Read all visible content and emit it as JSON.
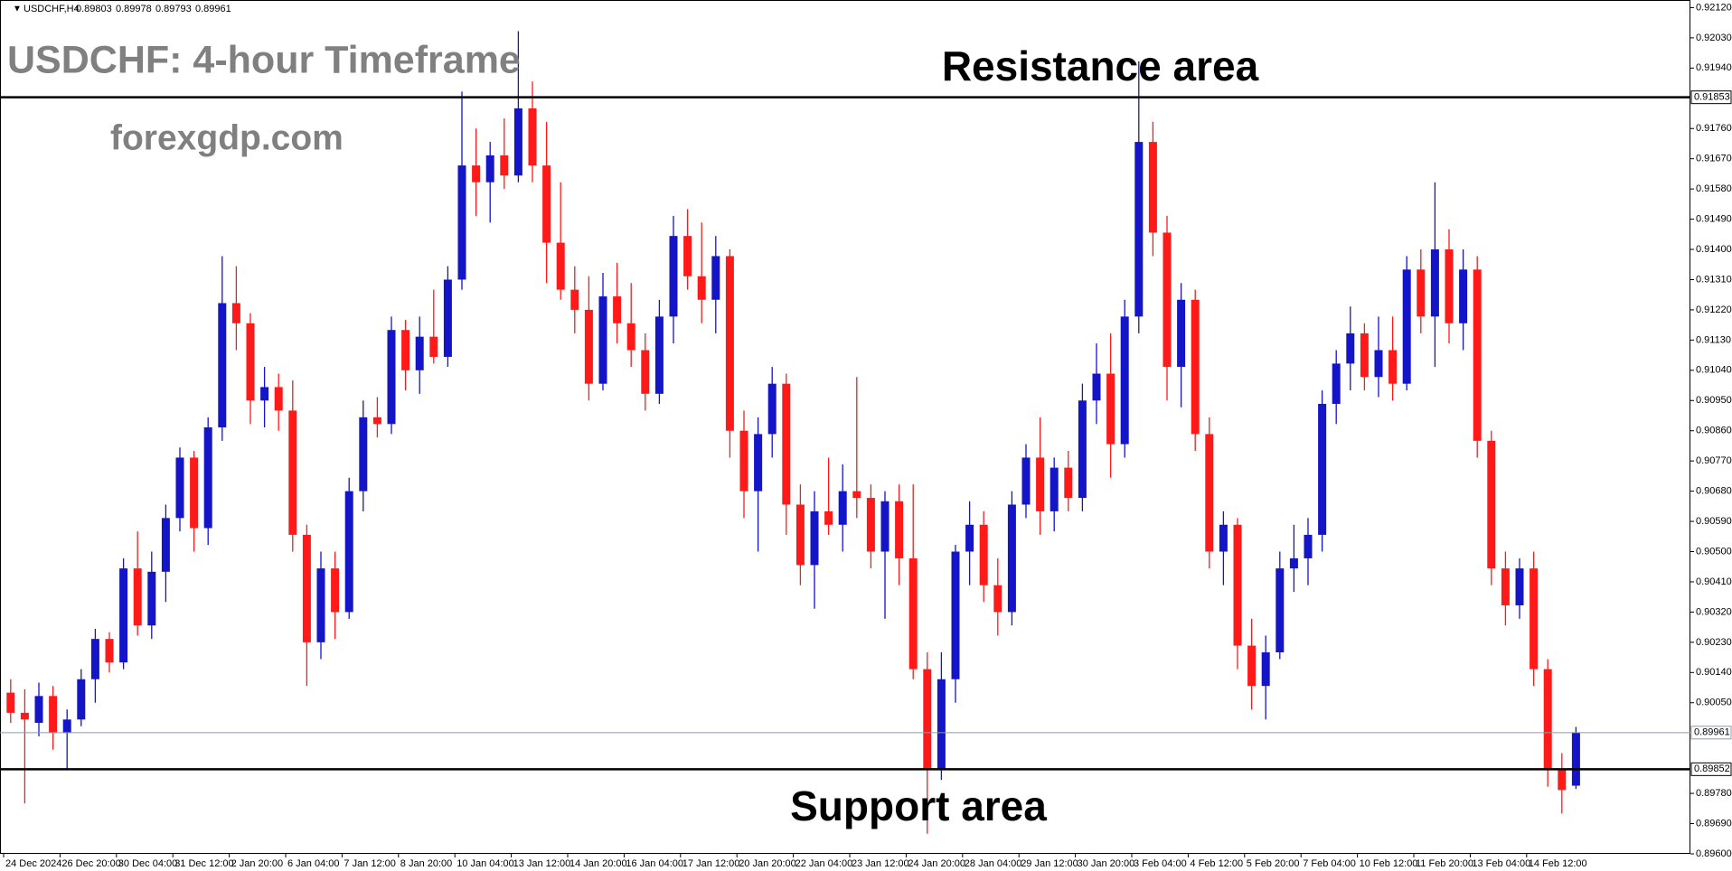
{
  "chart_data": {
    "type": "candlestick",
    "symbol": "USDCHF,H4",
    "title": "USDCHF: 4-hour Timeframe",
    "subtitle": "forexgdp.com",
    "annotations": [
      "Resistance area",
      "Support area"
    ],
    "levels": [
      0.91853,
      0.89852
    ],
    "up_color": "#1515c8",
    "down_color": "#ff1a1a",
    "ylim": [
      0.896,
      0.9214
    ],
    "yticks": [
      {
        "value": 0.9212,
        "label": "0.92120"
      },
      {
        "value": 0.9203,
        "label": "0.92030"
      },
      {
        "value": 0.9194,
        "label": "0.91940"
      },
      {
        "value": 0.9176,
        "label": "0.91760"
      },
      {
        "value": 0.9167,
        "label": "0.91670"
      },
      {
        "value": 0.9158,
        "label": "0.91580"
      },
      {
        "value": 0.9149,
        "label": "0.91490"
      },
      {
        "value": 0.914,
        "label": "0.91400"
      },
      {
        "value": 0.9131,
        "label": "0.91310"
      },
      {
        "value": 0.9122,
        "label": "0.91220"
      },
      {
        "value": 0.9113,
        "label": "0.91130"
      },
      {
        "value": 0.9104,
        "label": "0.91040"
      },
      {
        "value": 0.9095,
        "label": "0.90950"
      },
      {
        "value": 0.9086,
        "label": "0.90860"
      },
      {
        "value": 0.9077,
        "label": "0.90770"
      },
      {
        "value": 0.9068,
        "label": "0.90680"
      },
      {
        "value": 0.9059,
        "label": "0.90590"
      },
      {
        "value": 0.905,
        "label": "0.90500"
      },
      {
        "value": 0.9041,
        "label": "0.90410"
      },
      {
        "value": 0.9032,
        "label": "0.90320"
      },
      {
        "value": 0.9023,
        "label": "0.90230"
      },
      {
        "value": 0.9014,
        "label": "0.90140"
      },
      {
        "value": 0.9005,
        "label": "0.90050"
      },
      {
        "value": 0.8978,
        "label": "0.89780"
      },
      {
        "value": 0.8969,
        "label": "0.89690"
      },
      {
        "value": 0.896,
        "label": "0.89600"
      }
    ],
    "x": [
      "24 Dec 2024",
      null,
      null,
      null,
      "26 Dec 20:00",
      null,
      null,
      null,
      "30 Dec 04:00",
      null,
      null,
      null,
      "31 Dec 12:00",
      null,
      null,
      null,
      "2 Jan 20:00",
      null,
      null,
      null,
      "6 Jan 04:00",
      null,
      null,
      null,
      "7 Jan 12:00",
      null,
      null,
      null,
      "8 Jan 20:00",
      null,
      null,
      null,
      "10 Jan 04:00",
      null,
      null,
      null,
      "13 Jan 12:00",
      null,
      null,
      null,
      "14 Jan 20:00",
      null,
      null,
      null,
      "16 Jan 04:00",
      null,
      null,
      null,
      "17 Jan 12:00",
      null,
      null,
      null,
      "20 Jan 20:00",
      null,
      null,
      null,
      "22 Jan 04:00",
      null,
      null,
      null,
      "23 Jan 12:00",
      null,
      null,
      null,
      "24 Jan 20:00",
      null,
      null,
      null,
      "28 Jan 04:00",
      null,
      null,
      null,
      "29 Jan 12:00",
      null,
      null,
      null,
      "30 Jan 20:00",
      null,
      null,
      null,
      "3 Feb 04:00",
      null,
      null,
      null,
      "4 Feb 12:00",
      null,
      null,
      null,
      "5 Feb 20:00",
      null,
      null,
      null,
      "7 Feb 04:00",
      null,
      null,
      null,
      "10 Feb 12:00",
      null,
      null,
      null,
      "11 Feb 20:00",
      null,
      null,
      null,
      "13 Feb 04:00",
      null,
      null,
      null,
      "14 Feb 12:00",
      null,
      null,
      null
    ],
    "ohlc": [
      [
        0.9008,
        0.9012,
        0.8999,
        0.9002
      ],
      [
        0.9002,
        0.9009,
        0.8975,
        0.9
      ],
      [
        0.8999,
        0.9011,
        0.8995,
        0.9007
      ],
      [
        0.9007,
        0.901,
        0.8991,
        0.8996
      ],
      [
        0.8996,
        0.9003,
        0.8985,
        0.9
      ],
      [
        0.9,
        0.9015,
        0.8998,
        0.9012
      ],
      [
        0.9012,
        0.9027,
        0.9005,
        0.9024
      ],
      [
        0.9024,
        0.9026,
        0.9014,
        0.9017
      ],
      [
        0.9017,
        0.9048,
        0.9015,
        0.9045
      ],
      [
        0.9045,
        0.9056,
        0.9025,
        0.9028
      ],
      [
        0.9028,
        0.905,
        0.9024,
        0.9044
      ],
      [
        0.9044,
        0.9064,
        0.9035,
        0.906
      ],
      [
        0.906,
        0.9081,
        0.9056,
        0.9078
      ],
      [
        0.9078,
        0.908,
        0.905,
        0.9057
      ],
      [
        0.9057,
        0.909,
        0.9052,
        0.9087
      ],
      [
        0.9087,
        0.9138,
        0.9083,
        0.9124
      ],
      [
        0.9124,
        0.9135,
        0.911,
        0.9118
      ],
      [
        0.9118,
        0.9121,
        0.9088,
        0.9095
      ],
      [
        0.9095,
        0.9105,
        0.9087,
        0.9099
      ],
      [
        0.9099,
        0.9103,
        0.9086,
        0.9092
      ],
      [
        0.9092,
        0.9101,
        0.905,
        0.9055
      ],
      [
        0.9055,
        0.9058,
        0.901,
        0.9023
      ],
      [
        0.9023,
        0.905,
        0.9018,
        0.9045
      ],
      [
        0.9045,
        0.905,
        0.9024,
        0.9032
      ],
      [
        0.9032,
        0.9072,
        0.903,
        0.9068
      ],
      [
        0.9068,
        0.9095,
        0.9062,
        0.909
      ],
      [
        0.909,
        0.9096,
        0.9084,
        0.9088
      ],
      [
        0.9088,
        0.912,
        0.9085,
        0.9116
      ],
      [
        0.9116,
        0.9119,
        0.9098,
        0.9104
      ],
      [
        0.9104,
        0.912,
        0.9097,
        0.9114
      ],
      [
        0.9114,
        0.9128,
        0.9106,
        0.9108
      ],
      [
        0.9108,
        0.9135,
        0.9105,
        0.9131
      ],
      [
        0.9131,
        0.9187,
        0.9128,
        0.9165
      ],
      [
        0.9165,
        0.9176,
        0.915,
        0.916
      ],
      [
        0.916,
        0.9172,
        0.9148,
        0.9168
      ],
      [
        0.9168,
        0.9179,
        0.9158,
        0.9162
      ],
      [
        0.9162,
        0.9205,
        0.916,
        0.9182
      ],
      [
        0.9182,
        0.919,
        0.916,
        0.9165
      ],
      [
        0.9165,
        0.9178,
        0.913,
        0.9142
      ],
      [
        0.9142,
        0.916,
        0.9125,
        0.9128
      ],
      [
        0.9128,
        0.9135,
        0.9115,
        0.9122
      ],
      [
        0.9122,
        0.9132,
        0.9095,
        0.91
      ],
      [
        0.91,
        0.9133,
        0.9098,
        0.9126
      ],
      [
        0.9126,
        0.9136,
        0.9112,
        0.9118
      ],
      [
        0.9118,
        0.913,
        0.9105,
        0.911
      ],
      [
        0.911,
        0.9115,
        0.9092,
        0.9097
      ],
      [
        0.9097,
        0.9125,
        0.9094,
        0.912
      ],
      [
        0.912,
        0.915,
        0.9112,
        0.9144
      ],
      [
        0.9144,
        0.9152,
        0.9128,
        0.9132
      ],
      [
        0.9132,
        0.9148,
        0.9118,
        0.9125
      ],
      [
        0.9125,
        0.9144,
        0.9115,
        0.9138
      ],
      [
        0.9138,
        0.914,
        0.9078,
        0.9086
      ],
      [
        0.9086,
        0.9092,
        0.906,
        0.9068
      ],
      [
        0.9068,
        0.909,
        0.905,
        0.9085
      ],
      [
        0.9085,
        0.9105,
        0.9078,
        0.91
      ],
      [
        0.91,
        0.9103,
        0.9055,
        0.9064
      ],
      [
        0.9064,
        0.907,
        0.904,
        0.9046
      ],
      [
        0.9046,
        0.9068,
        0.9033,
        0.9062
      ],
      [
        0.9062,
        0.9078,
        0.9055,
        0.9058
      ],
      [
        0.9058,
        0.9076,
        0.905,
        0.9068
      ],
      [
        0.9068,
        0.9102,
        0.906,
        0.9066
      ],
      [
        0.9066,
        0.907,
        0.9045,
        0.905
      ],
      [
        0.905,
        0.9068,
        0.903,
        0.9065
      ],
      [
        0.9065,
        0.907,
        0.904,
        0.9048
      ],
      [
        0.9048,
        0.907,
        0.9012,
        0.9015
      ],
      [
        0.9015,
        0.902,
        0.8966,
        0.8985
      ],
      [
        0.8985,
        0.902,
        0.8982,
        0.9012
      ],
      [
        0.9012,
        0.9052,
        0.9005,
        0.905
      ],
      [
        0.905,
        0.9065,
        0.904,
        0.9058
      ],
      [
        0.9058,
        0.9062,
        0.9035,
        0.904
      ],
      [
        0.904,
        0.9048,
        0.9025,
        0.9032
      ],
      [
        0.9032,
        0.9068,
        0.9028,
        0.9064
      ],
      [
        0.9064,
        0.9082,
        0.906,
        0.9078
      ],
      [
        0.9078,
        0.909,
        0.9055,
        0.9062
      ],
      [
        0.9062,
        0.9078,
        0.9056,
        0.9075
      ],
      [
        0.9075,
        0.908,
        0.9062,
        0.9066
      ],
      [
        0.9066,
        0.91,
        0.9062,
        0.9095
      ],
      [
        0.9095,
        0.9112,
        0.9088,
        0.9103
      ],
      [
        0.9103,
        0.9115,
        0.9072,
        0.9082
      ],
      [
        0.9082,
        0.9125,
        0.9078,
        0.912
      ],
      [
        0.912,
        0.9196,
        0.9115,
        0.9172
      ],
      [
        0.9172,
        0.9178,
        0.9138,
        0.9145
      ],
      [
        0.9145,
        0.915,
        0.9095,
        0.9105
      ],
      [
        0.9105,
        0.913,
        0.9093,
        0.9125
      ],
      [
        0.9125,
        0.9128,
        0.908,
        0.9085
      ],
      [
        0.9085,
        0.909,
        0.9045,
        0.905
      ],
      [
        0.905,
        0.9062,
        0.904,
        0.9058
      ],
      [
        0.9058,
        0.906,
        0.9015,
        0.9022
      ],
      [
        0.9022,
        0.903,
        0.9003,
        0.901
      ],
      [
        0.901,
        0.9025,
        0.9,
        0.902
      ],
      [
        0.902,
        0.905,
        0.9018,
        0.9045
      ],
      [
        0.9045,
        0.9058,
        0.9038,
        0.9048
      ],
      [
        0.9048,
        0.906,
        0.904,
        0.9055
      ],
      [
        0.9055,
        0.9098,
        0.905,
        0.9094
      ],
      [
        0.9094,
        0.911,
        0.9088,
        0.9106
      ],
      [
        0.9106,
        0.9123,
        0.9098,
        0.9115
      ],
      [
        0.9115,
        0.9118,
        0.9098,
        0.9102
      ],
      [
        0.9102,
        0.912,
        0.9096,
        0.911
      ],
      [
        0.911,
        0.912,
        0.9095,
        0.91
      ],
      [
        0.91,
        0.9138,
        0.9098,
        0.9134
      ],
      [
        0.9134,
        0.914,
        0.9115,
        0.912
      ],
      [
        0.912,
        0.916,
        0.9105,
        0.914
      ],
      [
        0.914,
        0.9146,
        0.9112,
        0.9118
      ],
      [
        0.9118,
        0.914,
        0.911,
        0.9134
      ],
      [
        0.9134,
        0.9138,
        0.9078,
        0.9083
      ],
      [
        0.9083,
        0.9086,
        0.904,
        0.9045
      ],
      [
        0.9045,
        0.905,
        0.9028,
        0.9034
      ],
      [
        0.9034,
        0.9048,
        0.903,
        0.9045
      ],
      [
        0.9045,
        0.905,
        0.901,
        0.9015
      ],
      [
        0.9015,
        0.9018,
        0.898,
        0.8985
      ],
      [
        0.8985,
        0.899,
        0.8972,
        0.8979
      ],
      [
        0.89803,
        0.89978,
        0.89793,
        0.89961
      ]
    ]
  }
}
